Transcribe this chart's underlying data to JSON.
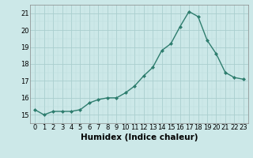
{
  "x": [
    0,
    1,
    2,
    3,
    4,
    5,
    6,
    7,
    8,
    9,
    10,
    11,
    12,
    13,
    14,
    15,
    16,
    17,
    18,
    19,
    20,
    21,
    22,
    23
  ],
  "y": [
    15.3,
    15.0,
    15.2,
    15.2,
    15.2,
    15.3,
    15.7,
    15.9,
    16.0,
    16.0,
    16.3,
    16.7,
    17.3,
    17.8,
    18.8,
    19.2,
    20.2,
    21.1,
    20.8,
    19.4,
    18.6,
    17.5,
    17.2,
    17.1
  ],
  "line_color": "#2e7d6e",
  "marker": "D",
  "marker_size": 2.0,
  "background_color": "#cce8e8",
  "grid_color_major": "#aacece",
  "grid_color_minor": "#bbdddd",
  "ylim": [
    14.5,
    21.5
  ],
  "xlim": [
    -0.5,
    23.5
  ],
  "yticks": [
    15,
    16,
    17,
    18,
    19,
    20,
    21
  ],
  "xticks": [
    0,
    1,
    2,
    3,
    4,
    5,
    6,
    7,
    8,
    9,
    10,
    11,
    12,
    13,
    14,
    15,
    16,
    17,
    18,
    19,
    20,
    21,
    22,
    23
  ],
  "xlabel": "Humidex (Indice chaleur)",
  "xlabel_fontsize": 7.5,
  "tick_fontsize": 6.0,
  "linewidth": 1.0
}
